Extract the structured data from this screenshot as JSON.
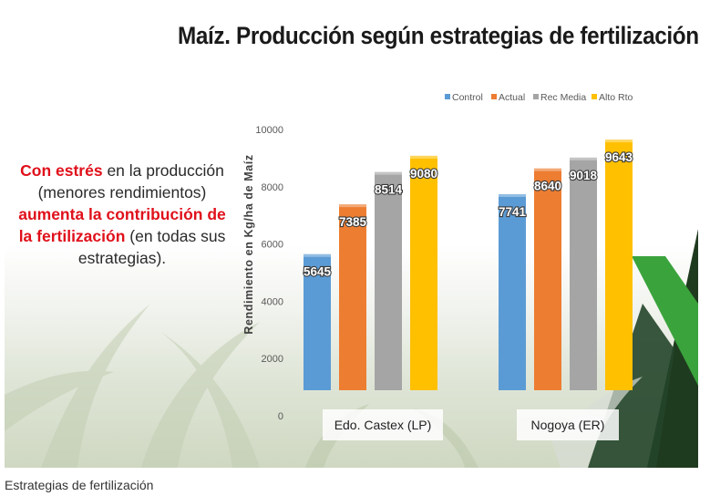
{
  "caption": "Estrategias de fertilización",
  "slide": {
    "title": "Maíz. Producción según estrategias de fertilización",
    "note": {
      "line1_bold": "Con estrés",
      "line1_rest": " en la producción",
      "line2": "(menores rendimientos)",
      "line3_bold": "aumenta la contribución de",
      "line4_bold": "la fertilización",
      "line4_rest": " (en todas sus",
      "line5": "estrategias)."
    }
  },
  "chart_data": {
    "type": "bar",
    "title": "",
    "xlabel": "",
    "ylabel": "Rendimiento en Kg/ha de Maíz",
    "categories": [
      "Edo. Castex (LP)",
      "Nogoya (ER)"
    ],
    "series": [
      {
        "name": "Control",
        "values": [
          5645,
          7741
        ],
        "color": "#5b9bd5"
      },
      {
        "name": "Actual",
        "values": [
          7385,
          8640
        ],
        "color": "#ed7d31"
      },
      {
        "name": "Rec Media",
        "values": [
          8514,
          9018
        ],
        "color": "#a5a5a5"
      },
      {
        "name": "Alto Rto",
        "values": [
          9080,
          9643
        ],
        "color": "#ffc000"
      }
    ],
    "ylim": [
      0,
      10000
    ],
    "yticks": [
      0,
      2000,
      4000,
      6000,
      8000,
      10000
    ],
    "legend": "top-right",
    "grid": false
  },
  "colors": {
    "accent_green": "#3aa33c",
    "dark_green": "#1e5a2a",
    "highlight_red": "#e0101b"
  }
}
